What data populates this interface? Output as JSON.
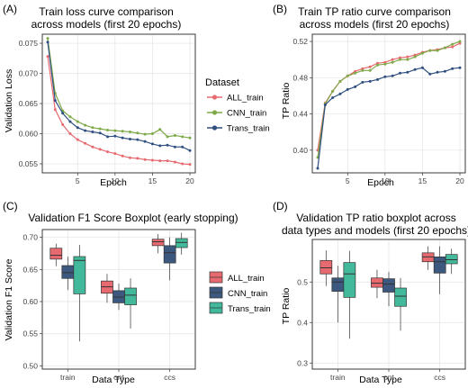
{
  "chart_data": [
    {
      "type": "line",
      "panel_label": "(A)",
      "title": [
        "Train loss curve comparison",
        "across models (first 20 epochs)"
      ],
      "xlabel": "Epoch",
      "ylabel": "Validation Loss",
      "xlim": [
        1,
        20
      ],
      "ylim": [
        0.0535,
        0.0765
      ],
      "xticks": [
        5,
        10,
        15,
        20
      ],
      "yticks": [
        0.055,
        0.06,
        0.065,
        0.07,
        0.075
      ],
      "ytick_labels": [
        "0.055",
        "0.060",
        "0.065",
        "0.070",
        "0.075"
      ],
      "grid": true,
      "x": [
        1,
        2,
        3,
        4,
        5,
        6,
        7,
        8,
        9,
        10,
        11,
        12,
        13,
        14,
        15,
        16,
        17,
        18,
        19,
        20
      ],
      "series": [
        {
          "name": "ALL_train",
          "color": "#e76a70",
          "values": [
            0.0728,
            0.064,
            0.0615,
            0.06,
            0.059,
            0.0584,
            0.0578,
            0.0574,
            0.057,
            0.0567,
            0.0563,
            0.056,
            0.0559,
            0.0557,
            0.0556,
            0.0555,
            0.0555,
            0.0553,
            0.055,
            0.0549
          ]
        },
        {
          "name": "CNN_train",
          "color": "#7ea948",
          "values": [
            0.0758,
            0.0667,
            0.0638,
            0.0628,
            0.062,
            0.0614,
            0.061,
            0.0608,
            0.0606,
            0.0605,
            0.0604,
            0.0603,
            0.0601,
            0.0599,
            0.06,
            0.0607,
            0.0595,
            0.0597,
            0.0595,
            0.0593
          ]
        },
        {
          "name": "Trans_train",
          "color": "#2e4f7f",
          "values": [
            0.0752,
            0.0655,
            0.0634,
            0.062,
            0.061,
            0.0605,
            0.0603,
            0.0601,
            0.0595,
            0.0596,
            0.0593,
            0.0591,
            0.059,
            0.0587,
            0.0583,
            0.058,
            0.0581,
            0.0578,
            0.0578,
            0.0572
          ]
        }
      ]
    },
    {
      "type": "line",
      "panel_label": "(B)",
      "title": [
        "Train TP ratio curve comparison",
        "across models (first 20 epochs)"
      ],
      "xlabel": "Epoch",
      "ylabel": "TP Ratio",
      "xlim": [
        1,
        20
      ],
      "ylim": [
        0.375,
        0.528
      ],
      "xticks": [
        5,
        10,
        15,
        20
      ],
      "yticks": [
        0.4,
        0.44,
        0.48,
        0.52
      ],
      "ytick_labels": [
        "0.40",
        "0.44",
        "0.48",
        "0.52"
      ],
      "grid": true,
      "x": [
        1,
        2,
        3,
        4,
        5,
        6,
        7,
        8,
        9,
        10,
        11,
        12,
        13,
        14,
        15,
        16,
        17,
        18,
        19,
        20
      ],
      "series": [
        {
          "name": "ALL_train",
          "color": "#e76a70",
          "values": [
            0.4,
            0.452,
            0.465,
            0.476,
            0.482,
            0.487,
            0.49,
            0.492,
            0.496,
            0.497,
            0.5,
            0.502,
            0.503,
            0.505,
            0.508,
            0.51,
            0.511,
            0.513,
            0.514,
            0.518
          ]
        },
        {
          "name": "CNN_train",
          "color": "#7ea948",
          "values": [
            0.392,
            0.451,
            0.465,
            0.476,
            0.482,
            0.485,
            0.488,
            0.488,
            0.494,
            0.495,
            0.497,
            0.5,
            0.5,
            0.503,
            0.507,
            0.51,
            0.51,
            0.513,
            0.517,
            0.52
          ]
        },
        {
          "name": "Trans_train",
          "color": "#2e4f7f",
          "values": [
            0.38,
            0.45,
            0.458,
            0.462,
            0.467,
            0.47,
            0.475,
            0.476,
            0.478,
            0.481,
            0.482,
            0.485,
            0.486,
            0.489,
            0.491,
            0.484,
            0.486,
            0.487,
            0.49,
            0.491
          ]
        }
      ]
    },
    {
      "type": "box",
      "panel_label": "(C)",
      "title": [
        "Validation F1 Score Boxplot (early stopping)"
      ],
      "xlabel": "Data Type",
      "ylabel": "Validation F1 Score",
      "ylim": [
        0.495,
        0.712
      ],
      "yticks": [
        0.5,
        0.55,
        0.6,
        0.65,
        0.7
      ],
      "ytick_labels": [
        "0.50",
        "0.55",
        "0.60",
        "0.65",
        "0.70"
      ],
      "grid": true,
      "categories": [
        "train",
        "ont",
        "ccs"
      ],
      "series": [
        {
          "name": "ALL_train",
          "color": "#e76a70",
          "boxes": [
            {
              "min": 0.655,
              "q1": 0.666,
              "median": 0.672,
              "q3": 0.683,
              "max": 0.69
            },
            {
              "min": 0.598,
              "q1": 0.613,
              "median": 0.623,
              "q3": 0.632,
              "max": 0.643
            },
            {
              "min": 0.675,
              "q1": 0.687,
              "median": 0.693,
              "q3": 0.697,
              "max": 0.705
            }
          ]
        },
        {
          "name": "CNN_train",
          "color": "#3c587f",
          "boxes": [
            {
              "min": 0.618,
              "q1": 0.636,
              "median": 0.645,
              "q3": 0.656,
              "max": 0.67
            },
            {
              "min": 0.587,
              "q1": 0.598,
              "median": 0.607,
              "q3": 0.617,
              "max": 0.628
            },
            {
              "min": 0.633,
              "q1": 0.66,
              "median": 0.676,
              "q3": 0.687,
              "max": 0.7
            }
          ]
        },
        {
          "name": "Trans_train",
          "color": "#42b99a",
          "boxes": [
            {
              "min": 0.538,
              "q1": 0.612,
              "median": 0.664,
              "q3": 0.67,
              "max": 0.688
            },
            {
              "min": 0.558,
              "q1": 0.595,
              "median": 0.61,
              "q3": 0.621,
              "max": 0.636
            },
            {
              "min": 0.673,
              "q1": 0.684,
              "median": 0.692,
              "q3": 0.698,
              "max": 0.707
            }
          ]
        }
      ]
    },
    {
      "type": "box",
      "panel_label": "(D)",
      "title": [
        "Validation TP ratio boxplot across",
        "data types and models (first 20 epochs)"
      ],
      "xlabel": "Data Type",
      "ylabel": "TP Ratio",
      "ylim": [
        0.285,
        0.605
      ],
      "yticks": [
        0.3,
        0.4,
        0.5
      ],
      "ytick_labels": [
        "0.3",
        "0.4",
        "0.5"
      ],
      "grid": true,
      "categories": [
        "train",
        "ont",
        "ccs"
      ],
      "series": [
        {
          "name": "ALL_train",
          "color": "#e76a70",
          "boxes": [
            {
              "min": 0.49,
              "q1": 0.52,
              "median": 0.535,
              "q3": 0.553,
              "max": 0.578
            },
            {
              "min": 0.46,
              "q1": 0.487,
              "median": 0.497,
              "q3": 0.51,
              "max": 0.53
            },
            {
              "min": 0.53,
              "q1": 0.55,
              "median": 0.562,
              "q3": 0.572,
              "max": 0.588
            }
          ]
        },
        {
          "name": "CNN_train",
          "color": "#3c587f",
          "boxes": [
            {
              "min": 0.4,
              "q1": 0.477,
              "median": 0.5,
              "q3": 0.51,
              "max": 0.54
            },
            {
              "min": 0.44,
              "q1": 0.475,
              "median": 0.495,
              "q3": 0.508,
              "max": 0.525
            },
            {
              "min": 0.47,
              "q1": 0.522,
              "median": 0.55,
              "q3": 0.562,
              "max": 0.588
            }
          ]
        },
        {
          "name": "Trans_train",
          "color": "#42b99a",
          "boxes": [
            {
              "min": 0.36,
              "q1": 0.462,
              "median": 0.52,
              "q3": 0.548,
              "max": 0.577
            },
            {
              "min": 0.38,
              "q1": 0.44,
              "median": 0.465,
              "q3": 0.485,
              "max": 0.51
            },
            {
              "min": 0.52,
              "q1": 0.545,
              "median": 0.555,
              "q3": 0.568,
              "max": 0.582
            }
          ]
        }
      ]
    }
  ],
  "legend_top": {
    "title": "Dataset",
    "items": [
      {
        "label": "ALL_train",
        "color": "#e76a70"
      },
      {
        "label": "CNN_train",
        "color": "#7ea948"
      },
      {
        "label": "Trans_train",
        "color": "#2e4f7f"
      }
    ]
  },
  "legend_bottom": {
    "items": [
      {
        "label": "ALL_train",
        "color": "#e76a70"
      },
      {
        "label": "CNN_train",
        "color": "#3c587f"
      },
      {
        "label": "Trans_train",
        "color": "#42b99a"
      }
    ]
  }
}
